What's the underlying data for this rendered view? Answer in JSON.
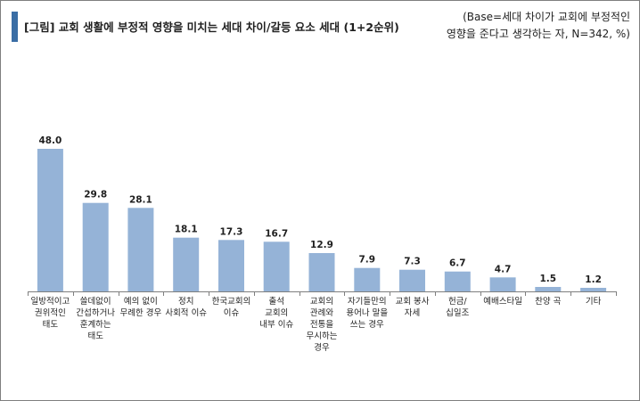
{
  "header": {
    "title": "[그림] 교회 생활에 부정적 영향을 미치는 세대 차이/갈등 요소 세대 (1+2순위)",
    "base_line1": "(Base=세대 차이가 교회에 부정적인",
    "base_line2": "영향을 준다고 생각하는 자, N=342, %)"
  },
  "colors": {
    "bar": "#95b3d7",
    "accent": "#3a6ea5",
    "axis": "#7f7f7f"
  },
  "chart_data": {
    "type": "bar",
    "title": "[그림] 교회 생활에 부정적 영향을 미치는 세대 차이/갈등 요소 세대 (1+2순위)",
    "xlabel": "",
    "ylabel": "",
    "ylim": [
      0,
      50
    ],
    "grid": false,
    "categories": [
      [
        "일방적이고",
        "권위적인",
        "태도"
      ],
      [
        "쓸데없이",
        "간섭하거나",
        "훈계하는",
        "태도"
      ],
      [
        "예의 없이",
        "무례한 경우"
      ],
      [
        "정치",
        "사회적 이슈"
      ],
      [
        "한국교회의",
        "이슈"
      ],
      [
        "출석",
        "교회의",
        "내부 이슈"
      ],
      [
        "교회의",
        "관례와",
        "전통을",
        "무시하는",
        "경우"
      ],
      [
        "자기들만의",
        "용어나 말을",
        "쓰는 경우"
      ],
      [
        "교회 봉사",
        "자세"
      ],
      [
        "헌금/",
        "십일조"
      ],
      [
        "예배스타일"
      ],
      [
        "찬양 곡"
      ],
      [
        "기타"
      ]
    ],
    "values": [
      48.0,
      29.8,
      28.1,
      18.1,
      17.3,
      16.7,
      12.9,
      7.9,
      7.3,
      6.7,
      4.7,
      1.5,
      1.2
    ],
    "value_labels": [
      "48.0",
      "29.8",
      "28.1",
      "18.1",
      "17.3",
      "16.7",
      "12.9",
      "7.9",
      "7.3",
      "6.7",
      "4.7",
      "1.5",
      "1.2"
    ]
  }
}
